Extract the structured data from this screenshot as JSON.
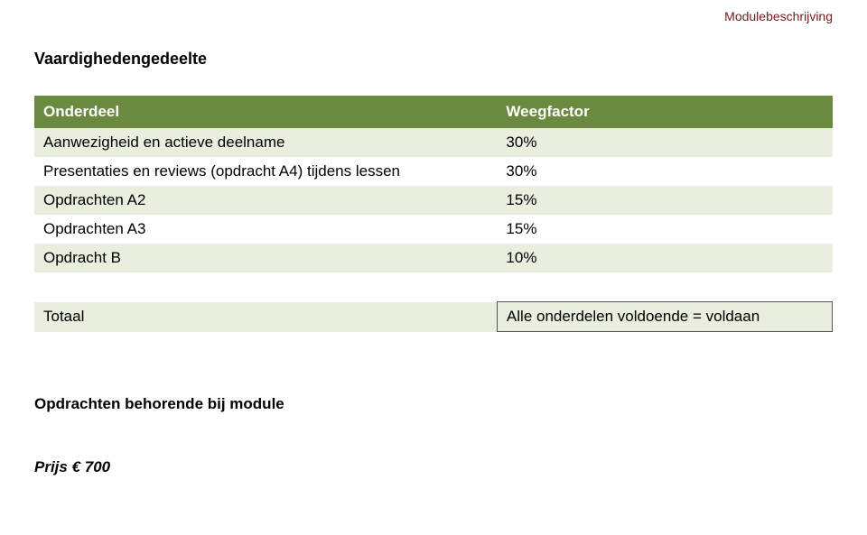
{
  "header": {
    "topRight": "Modulebeschrijving",
    "topRightColor": "#732020"
  },
  "section": {
    "title": "Vaardighedengedeelte"
  },
  "table": {
    "headerBg": "#6a8a3f",
    "headerFg": "#ffffff",
    "bandEven": "#e8efdf",
    "bandOdd": "#ffffff",
    "columns": {
      "left": "Onderdeel",
      "right": "Weegfactor"
    },
    "rows": [
      {
        "label": "Aanwezigheid en actieve deelname",
        "value": "30%"
      },
      {
        "label": "Presentaties en reviews (opdracht A4) tijdens lessen",
        "value": "30%"
      },
      {
        "label": "Opdrachten A2",
        "value": "15%"
      },
      {
        "label": "Opdrachten A3",
        "value": "15%"
      },
      {
        "label": "Opdracht B",
        "value": "10%"
      }
    ],
    "spacerRows": 1,
    "total": {
      "label": "Totaal",
      "value": "Alle onderdelen voldoende = voldaan"
    }
  },
  "subheading": "Opdrachten behorende bij module",
  "price": "Prijs € 700"
}
